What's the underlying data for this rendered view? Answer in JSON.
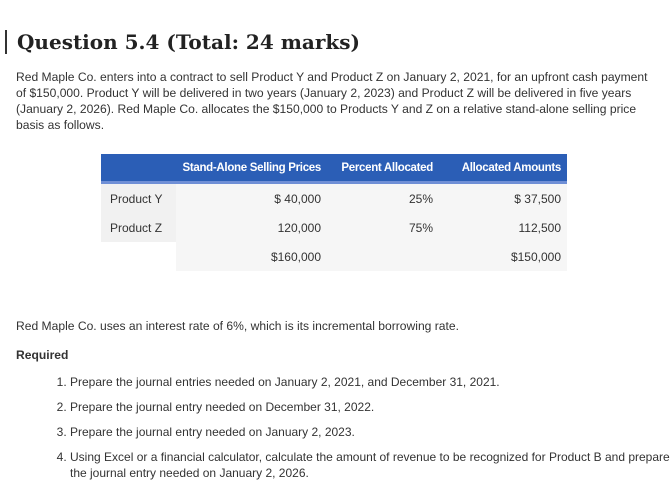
{
  "question": {
    "title": "Question 5.4 (Total: 24 marks)",
    "intro": "Red Maple Co. enters into a contract to sell Product Y and Product Z on January 2, 2021, for an upfront cash payment of $150,000. Product Y will be delivered in two years (January 2, 2023) and Product Z will be delivered in five years (January 2, 2026). Red Maple Co. allocates the $150,000 to Products Y and Z on a relative stand-alone selling price basis as follows.",
    "outro": "Red Maple Co. uses an interest rate of 6%, which is its incremental borrowing rate.",
    "required_heading": "Required"
  },
  "table": {
    "headers": [
      "",
      "Stand-Alone Selling Prices",
      "Percent Allocated",
      "Allocated Amounts"
    ],
    "rows": [
      {
        "label": "Product Y",
        "price": "$ 40,000",
        "percent": "25%",
        "amount": "$ 37,500"
      },
      {
        "label": "Product Z",
        "price": "120,000",
        "percent": "75%",
        "amount": "112,500"
      },
      {
        "label": "",
        "price": "$160,000",
        "percent": "",
        "amount": "$150,000"
      }
    ]
  },
  "requirements": [
    "Prepare the journal entries needed on January 2, 2021, and December 31, 2021.",
    "Prepare the journal entry needed on December 31, 2022.",
    "Prepare the journal entry needed on January 2, 2023.",
    "Using Excel or a financial calculator, calculate the amount of revenue to be recognized for Product B and prepare the journal entry needed on January 2, 2026."
  ],
  "colors": {
    "header_bg": "#2b5eb6",
    "header_text": "#ffffff",
    "cell_bg": "#f6f6f6"
  }
}
